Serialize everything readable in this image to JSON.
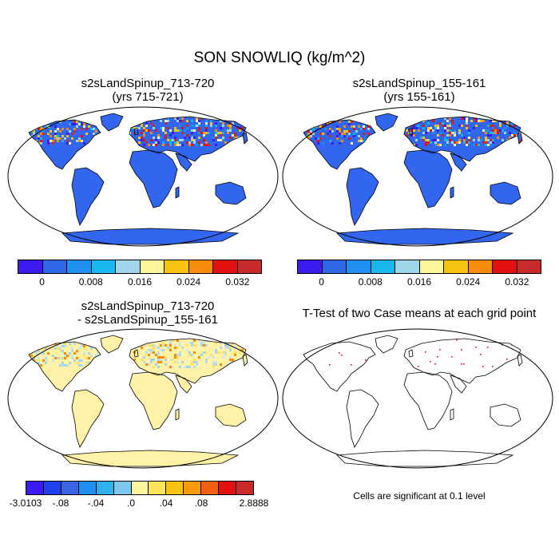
{
  "figure": {
    "title": "SON SNOWLIQ (kg/m^2)",
    "note": "Cells are significant at 0.1 level"
  },
  "panels": {
    "top_left": {
      "title_line1": "s2sLandSpinup_713-720",
      "title_line2": "(yrs 715-721)"
    },
    "top_right": {
      "title_line1": "s2sLandSpinup_155-161",
      "title_line2": "(yrs 155-161)"
    },
    "bottom_left": {
      "title_line1": "s2sLandSpinup_713-720",
      "title_line2": "- s2sLandSpinup_155-161"
    },
    "bottom_right": {
      "title_line1": "T-Test of two Case means at each grid point"
    }
  },
  "colors": {
    "land_base": "#3366ee",
    "diff_base": "#fff2a8",
    "coast": "#000000",
    "signif": "#e01010"
  },
  "chart_data": [
    {
      "type": "heatmap",
      "panel": "top_left",
      "title": "s2sLandSpinup_713-720 (yrs 715-721)",
      "variable": "SNOWLIQ",
      "units": "kg/m^2",
      "projection": "Robinson",
      "colorbar": {
        "colors": [
          "#3a1cf2",
          "#2f66e6",
          "#1f8ff0",
          "#19b7ee",
          "#9fd4ea",
          "#fff59a",
          "#f8c210",
          "#f88c0a",
          "#e21010",
          "#c62a2a"
        ],
        "tick_labels": [
          "0",
          "0.008",
          "0.016",
          "0.024",
          "0.032"
        ]
      }
    },
    {
      "type": "heatmap",
      "panel": "top_right",
      "title": "s2sLandSpinup_155-161 (yrs 155-161)",
      "variable": "SNOWLIQ",
      "units": "kg/m^2",
      "projection": "Robinson",
      "colorbar": {
        "colors": [
          "#3a1cf2",
          "#2f66e6",
          "#1f8ff0",
          "#19b7ee",
          "#9fd4ea",
          "#fff59a",
          "#f8c210",
          "#f88c0a",
          "#e21010",
          "#c62a2a"
        ],
        "tick_labels": [
          "0",
          "0.008",
          "0.016",
          "0.024",
          "0.032"
        ]
      }
    },
    {
      "type": "heatmap",
      "panel": "bottom_left",
      "title": "s2sLandSpinup_713-720 - s2sLandSpinup_155-161",
      "projection": "Robinson",
      "colorbar": {
        "colors": [
          "#3a1cf2",
          "#2040f0",
          "#3a66e6",
          "#1f8ff0",
          "#2fb1ee",
          "#7cc8ee",
          "#fff59a",
          "#ffe45a",
          "#f8c210",
          "#f89a0a",
          "#f26010",
          "#e21010",
          "#c62a2a"
        ],
        "tick_labels": [
          "-3.0103",
          "-.08",
          "-.04",
          ".0",
          ".04",
          ".08",
          "2.8888"
        ]
      }
    },
    {
      "type": "heatmap",
      "panel": "bottom_right",
      "title": "T-Test of two Case means at each grid point",
      "significance_level": 0.1
    }
  ]
}
